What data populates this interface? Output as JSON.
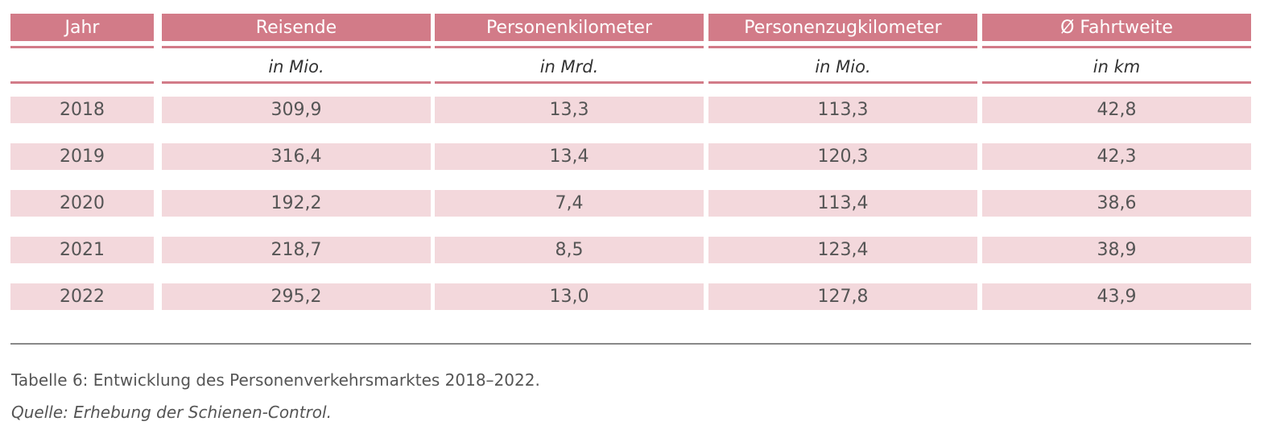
{
  "table": {
    "columns": [
      {
        "header": "Jahr",
        "unit": ""
      },
      {
        "header": "Reisende",
        "unit": "in Mio."
      },
      {
        "header": "Personenkilometer",
        "unit": "in Mrd."
      },
      {
        "header": "Personenzugkilometer",
        "unit": "in Mio."
      },
      {
        "header": "Ø Fahrtweite",
        "unit": "in km"
      }
    ],
    "rows": [
      [
        "2018",
        "309,9",
        "13,3",
        "113,3",
        "42,8"
      ],
      [
        "2019",
        "316,4",
        "13,4",
        "120,3",
        "42,3"
      ],
      [
        "2020",
        "192,2",
        "7,4",
        "113,4",
        "38,6"
      ],
      [
        "2021",
        "218,7",
        "8,5",
        "123,4",
        "38,9"
      ],
      [
        "2022",
        "295,2",
        "13,0",
        "127,8",
        "43,9"
      ]
    ]
  },
  "caption": {
    "title": "Tabelle 6: Entwicklung des Personenverkehrsmarktes 2018–2022.",
    "source": "Quelle: Erhebung der Schienen-Control."
  },
  "colors": {
    "header_bg": "#d27b88",
    "row_bg": "#f3d8dc"
  }
}
